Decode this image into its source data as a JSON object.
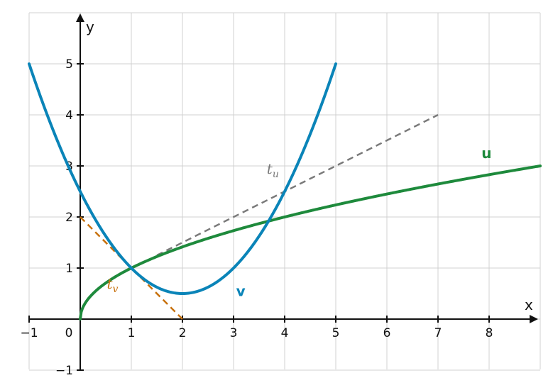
{
  "chart_data": {
    "type": "line",
    "xlabel": "x",
    "ylabel": "y",
    "xlim": [
      -1,
      9
    ],
    "ylim": [
      -1,
      6
    ],
    "x_ticks": [
      -1,
      0,
      1,
      2,
      3,
      4,
      5,
      6,
      7,
      8
    ],
    "x_tick_labels": [
      "−1",
      "0",
      "1",
      "2",
      "3",
      "4",
      "5",
      "6",
      "7",
      "8"
    ],
    "y_ticks": [
      -1,
      1,
      2,
      3,
      4,
      5
    ],
    "y_tick_labels": [
      "−1",
      "1",
      "2",
      "3",
      "4",
      "5"
    ],
    "grid": true,
    "series": [
      {
        "name": "u",
        "color": "#1e8a3c",
        "style": "solid",
        "x": [
          0,
          0.02,
          0.1,
          0.25,
          0.5,
          0.75,
          1,
          1.5,
          2,
          2.5,
          3,
          4,
          5,
          6,
          7,
          8,
          9
        ],
        "y": [
          0,
          0.141,
          0.316,
          0.5,
          0.707,
          0.866,
          1,
          1.225,
          1.414,
          1.581,
          1.732,
          2,
          2.236,
          2.449,
          2.646,
          2.828,
          3
        ]
      },
      {
        "name": "v",
        "color": "#0a84b8",
        "style": "solid",
        "x": [
          -1,
          -0.5,
          0,
          0.5,
          1,
          1.5,
          2,
          2.5,
          3,
          3.5,
          4,
          4.5,
          5
        ],
        "y": [
          5,
          3.625,
          2.5,
          1.625,
          1,
          0.625,
          0.5,
          0.625,
          1,
          1.625,
          2.5,
          3.625,
          5
        ]
      },
      {
        "name": "t_u",
        "color": "#7a7a7a",
        "style": "dashed",
        "x": [
          1.5,
          7
        ],
        "y": [
          1.25,
          4
        ]
      },
      {
        "name": "t_v",
        "color": "#c8720f",
        "style": "dashed",
        "x": [
          0,
          2
        ],
        "y": [
          2,
          0
        ]
      }
    ],
    "annotations": [
      {
        "text": "u",
        "x": 7.85,
        "y": 3.15,
        "color": "#1e8a3c",
        "kind": "curve"
      },
      {
        "text": "v",
        "x": 3.05,
        "y": 0.45,
        "color": "#0a84b8",
        "kind": "curve"
      },
      {
        "text": "t",
        "sub": "u",
        "x": 3.65,
        "y": 2.85,
        "color": "#7a7a7a",
        "kind": "tangent"
      },
      {
        "text": "t",
        "sub": "v",
        "x": 0.52,
        "y": 0.6,
        "color": "#c8720f",
        "kind": "tangent"
      }
    ]
  }
}
